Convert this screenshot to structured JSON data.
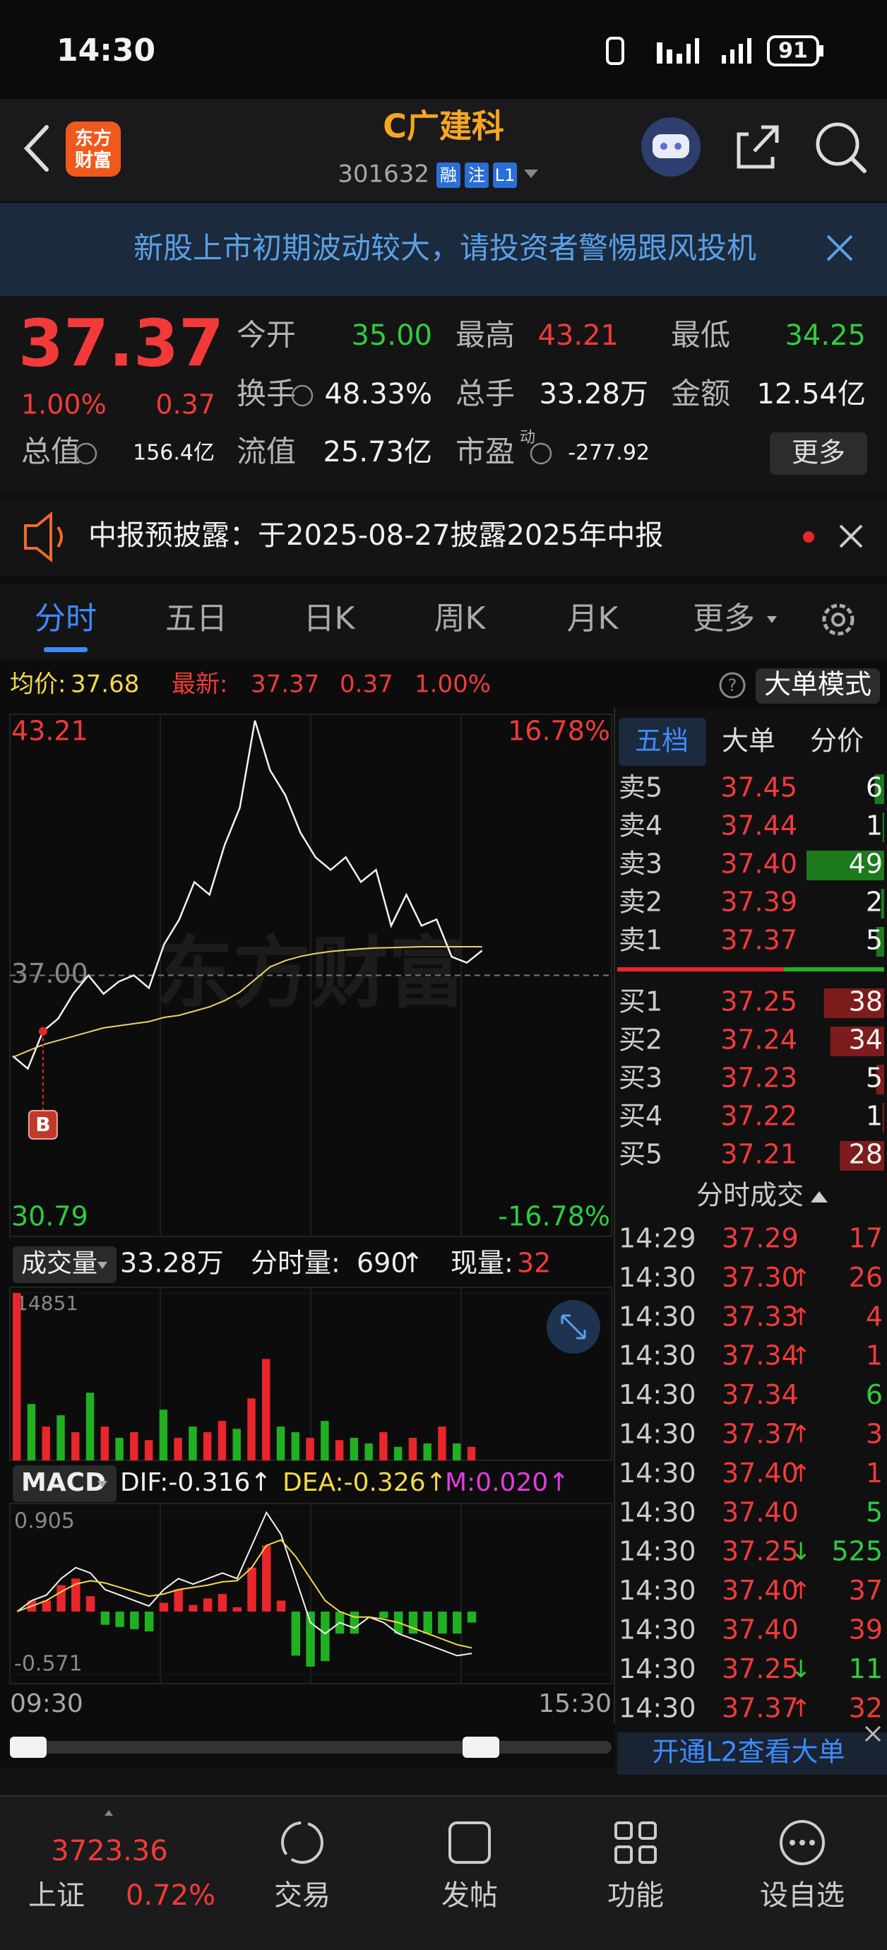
{
  "status": {
    "time": "14:30",
    "battery": "91"
  },
  "header": {
    "logo": [
      "东方",
      "财富"
    ],
    "title": "C广建科",
    "code": "301632",
    "tags": [
      "融",
      "注",
      "L1"
    ]
  },
  "banner": "新股上市初期波动较大，请投资者警惕跟风投机",
  "quote": {
    "price": "37.37",
    "change_pct": "1.00%",
    "change": "0.37",
    "stats": [
      {
        "label": "今开",
        "value": "35.00"
      },
      {
        "label": "最高",
        "value": "43.21"
      },
      {
        "label": "最低",
        "value": "34.25"
      },
      {
        "label": "换手",
        "value": "48.33%"
      },
      {
        "label": "总手",
        "value": "33.28万"
      },
      {
        "label": "金额",
        "value": "12.54亿"
      },
      {
        "label": "总值",
        "value": "156.4亿"
      },
      {
        "label": "流值",
        "value": "25.73亿"
      },
      {
        "label": "市盈",
        "value": "-277.92"
      }
    ],
    "pe_tag": "动",
    "more": "更多"
  },
  "notice": "中报预披露：于2025-08-27披露2025年中报",
  "tabs": [
    "分时",
    "五日",
    "日K",
    "周K",
    "月K",
    "更多"
  ],
  "info": {
    "avg_label": "均价:",
    "avg": "37.68",
    "last_label": "最新:",
    "last": "37.37",
    "change": "0.37",
    "change_pct": "1.00%",
    "help": "?",
    "mode": "大单模式"
  },
  "chart_data": [
    {
      "type": "line",
      "watermark": "东方财富",
      "ylim": [
        30.79,
        43.21
      ],
      "yticks": [
        30.79,
        {
          "value": 37,
          "label": "37.00"
        },
        43.21
      ],
      "y2lim": [
        -16.78,
        16.78
      ],
      "y2ticks": [
        {
          "value": -16.78,
          "label": "-16.78%"
        },
        {
          "value": 16.78,
          "label": "16.78%"
        }
      ],
      "series": [
        {
          "color": "#f2f2f2",
          "values": [
            35.08,
            34.78,
            35.67,
            35.97,
            36.56,
            37.0,
            36.56,
            36.85,
            37.0,
            36.7,
            37.74,
            38.33,
            39.22,
            38.92,
            40.1,
            40.99,
            43.06,
            41.88,
            41.29,
            40.4,
            39.81,
            39.51,
            39.81,
            39.22,
            39.51,
            38.18,
            38.92,
            38.18,
            38.33,
            37.44,
            37.3,
            37.59
          ]
        },
        {
          "color": "#e8d36a",
          "values": [
            35.05,
            35.2,
            35.35,
            35.45,
            35.55,
            35.65,
            35.75,
            35.8,
            35.85,
            35.9,
            36.0,
            36.05,
            36.15,
            36.25,
            36.4,
            36.6,
            36.9,
            37.2,
            37.35,
            37.45,
            37.52,
            37.57,
            37.6,
            37.63,
            37.65,
            37.66,
            37.67,
            37.68,
            37.68,
            37.68,
            37.68,
            37.68
          ]
        }
      ],
      "marker": {
        "label": "B",
        "index": 2
      }
    },
    {
      "type": "bar",
      "title": "成交量",
      "total": "33.28万",
      "current_label": "分时量:",
      "current": "690",
      "current_arrow": "↑",
      "now_label": "现量:",
      "now": "32",
      "ylim": [
        0,
        14851
      ],
      "yticks": [
        14851
      ],
      "values": [
        14851,
        5000,
        3000,
        4000,
        2500,
        6000,
        3000,
        2000,
        2500,
        1800,
        4500,
        2000,
        3000,
        2500,
        3500,
        2800,
        5500,
        9000,
        3000,
        2500,
        2000,
        3500,
        1800,
        2000,
        1500,
        2500,
        1200,
        2000,
        1500,
        3000,
        1500,
        1200
      ],
      "sides": [
        "up",
        "down",
        "up",
        "down",
        "up",
        "down",
        "up",
        "down",
        "up",
        "up",
        "down",
        "up",
        "down",
        "up",
        "up",
        "down",
        "up",
        "up",
        "down",
        "down",
        "up",
        "down",
        "up",
        "down",
        "down",
        "up",
        "down",
        "up",
        "down",
        "up",
        "down",
        "up"
      ],
      "up_color": "#e8262b",
      "down_color": "#21b021"
    },
    {
      "type": "macd",
      "legend": [
        {
          "text": "MACD"
        },
        {
          "text": "DIF:-0.316↑",
          "color": "#f2f2f2"
        },
        {
          "text": "DEA:-0.326↑",
          "color": "#f2d94a"
        },
        {
          "text": "M:0.020↑",
          "color": "#e03de0"
        }
      ],
      "ylim": [
        -0.571,
        0.905
      ],
      "yticks": [
        -0.571,
        0.905
      ],
      "series": [
        {
          "color": "#f2f2f2",
          "values": [
            0.0,
            0.1,
            0.15,
            0.3,
            0.4,
            0.35,
            0.2,
            0.15,
            0.1,
            0.05,
            0.2,
            0.3,
            0.25,
            0.3,
            0.35,
            0.3,
            0.6,
            0.9,
            0.7,
            0.3,
            -0.1,
            -0.2,
            -0.1,
            -0.15,
            -0.05,
            -0.1,
            -0.2,
            -0.25,
            -0.3,
            -0.35,
            -0.4,
            -0.38
          ]
        },
        {
          "color": "#f2d94a",
          "values": [
            0.0,
            0.05,
            0.1,
            0.18,
            0.25,
            0.28,
            0.26,
            0.22,
            0.18,
            0.14,
            0.16,
            0.2,
            0.22,
            0.24,
            0.27,
            0.28,
            0.4,
            0.6,
            0.65,
            0.5,
            0.3,
            0.1,
            0.0,
            -0.05,
            -0.05,
            -0.07,
            -0.1,
            -0.15,
            -0.2,
            -0.25,
            -0.3,
            -0.33
          ]
        }
      ],
      "histogram": [
        0,
        0.1,
        0.1,
        0.24,
        0.3,
        0.14,
        -0.12,
        -0.14,
        -0.16,
        -0.18,
        0.08,
        0.2,
        0.06,
        0.12,
        0.16,
        0.04,
        0.4,
        0.6,
        0.1,
        -0.4,
        -0.5,
        -0.45,
        -0.2,
        -0.2,
        0.0,
        -0.06,
        -0.2,
        -0.2,
        -0.2,
        -0.2,
        -0.2,
        -0.1
      ],
      "up_color": "#e8262b",
      "down_color": "#21b021"
    }
  ],
  "time_axis": [
    "09:30",
    "15:30"
  ],
  "order_book": {
    "tabs": [
      "五档",
      "大单",
      "分价"
    ],
    "asks": [
      {
        "label": "卖5",
        "price": "37.45",
        "volume": 6
      },
      {
        "label": "卖4",
        "price": "37.44",
        "volume": 1
      },
      {
        "label": "卖3",
        "price": "37.40",
        "volume": 49
      },
      {
        "label": "卖2",
        "price": "37.39",
        "volume": 2
      },
      {
        "label": "卖1",
        "price": "37.37",
        "volume": 5
      }
    ],
    "bids": [
      {
        "label": "买1",
        "price": "37.25",
        "volume": 38
      },
      {
        "label": "买2",
        "price": "37.24",
        "volume": 34
      },
      {
        "label": "买3",
        "price": "37.23",
        "volume": 5
      },
      {
        "label": "买4",
        "price": "37.22",
        "volume": 1
      },
      {
        "label": "买5",
        "price": "37.21",
        "volume": 28
      }
    ]
  },
  "trades": {
    "title": "分时成交",
    "rows": [
      {
        "time": "14:29",
        "price": "37.29",
        "volume": 17,
        "side": "up"
      },
      {
        "time": "14:30",
        "price": "37.30",
        "dir": "↑",
        "volume": 26,
        "side": "up"
      },
      {
        "time": "14:30",
        "price": "37.33",
        "dir": "↑",
        "volume": 4,
        "side": "up"
      },
      {
        "time": "14:30",
        "price": "37.34",
        "dir": "↑",
        "volume": 1,
        "side": "up"
      },
      {
        "time": "14:30",
        "price": "37.34",
        "volume": 6,
        "side": "down"
      },
      {
        "time": "14:30",
        "price": "37.37",
        "dir": "↑",
        "volume": 3,
        "side": "up"
      },
      {
        "time": "14:30",
        "price": "37.40",
        "dir": "↑",
        "volume": 1,
        "side": "up"
      },
      {
        "time": "14:30",
        "price": "37.40",
        "volume": 5,
        "side": "down"
      },
      {
        "time": "14:30",
        "price": "37.25",
        "dir": "↓",
        "volume": 525,
        "side": "down"
      },
      {
        "time": "14:30",
        "price": "37.40",
        "dir": "↑",
        "volume": 37,
        "side": "up"
      },
      {
        "time": "14:30",
        "price": "37.40",
        "volume": 39,
        "side": "up"
      },
      {
        "time": "14:30",
        "price": "37.25",
        "dir": "↓",
        "volume": 11,
        "side": "down"
      },
      {
        "time": "14:30",
        "price": "37.37",
        "dir": "↑",
        "volume": 32,
        "side": "up"
      }
    ],
    "l2": "开通L2查看大单"
  },
  "bottom": {
    "index": {
      "value": "3723.36",
      "name": "上证",
      "change": "0.72%"
    },
    "nav": [
      "交易",
      "发帖",
      "功能",
      "设自选"
    ]
  }
}
